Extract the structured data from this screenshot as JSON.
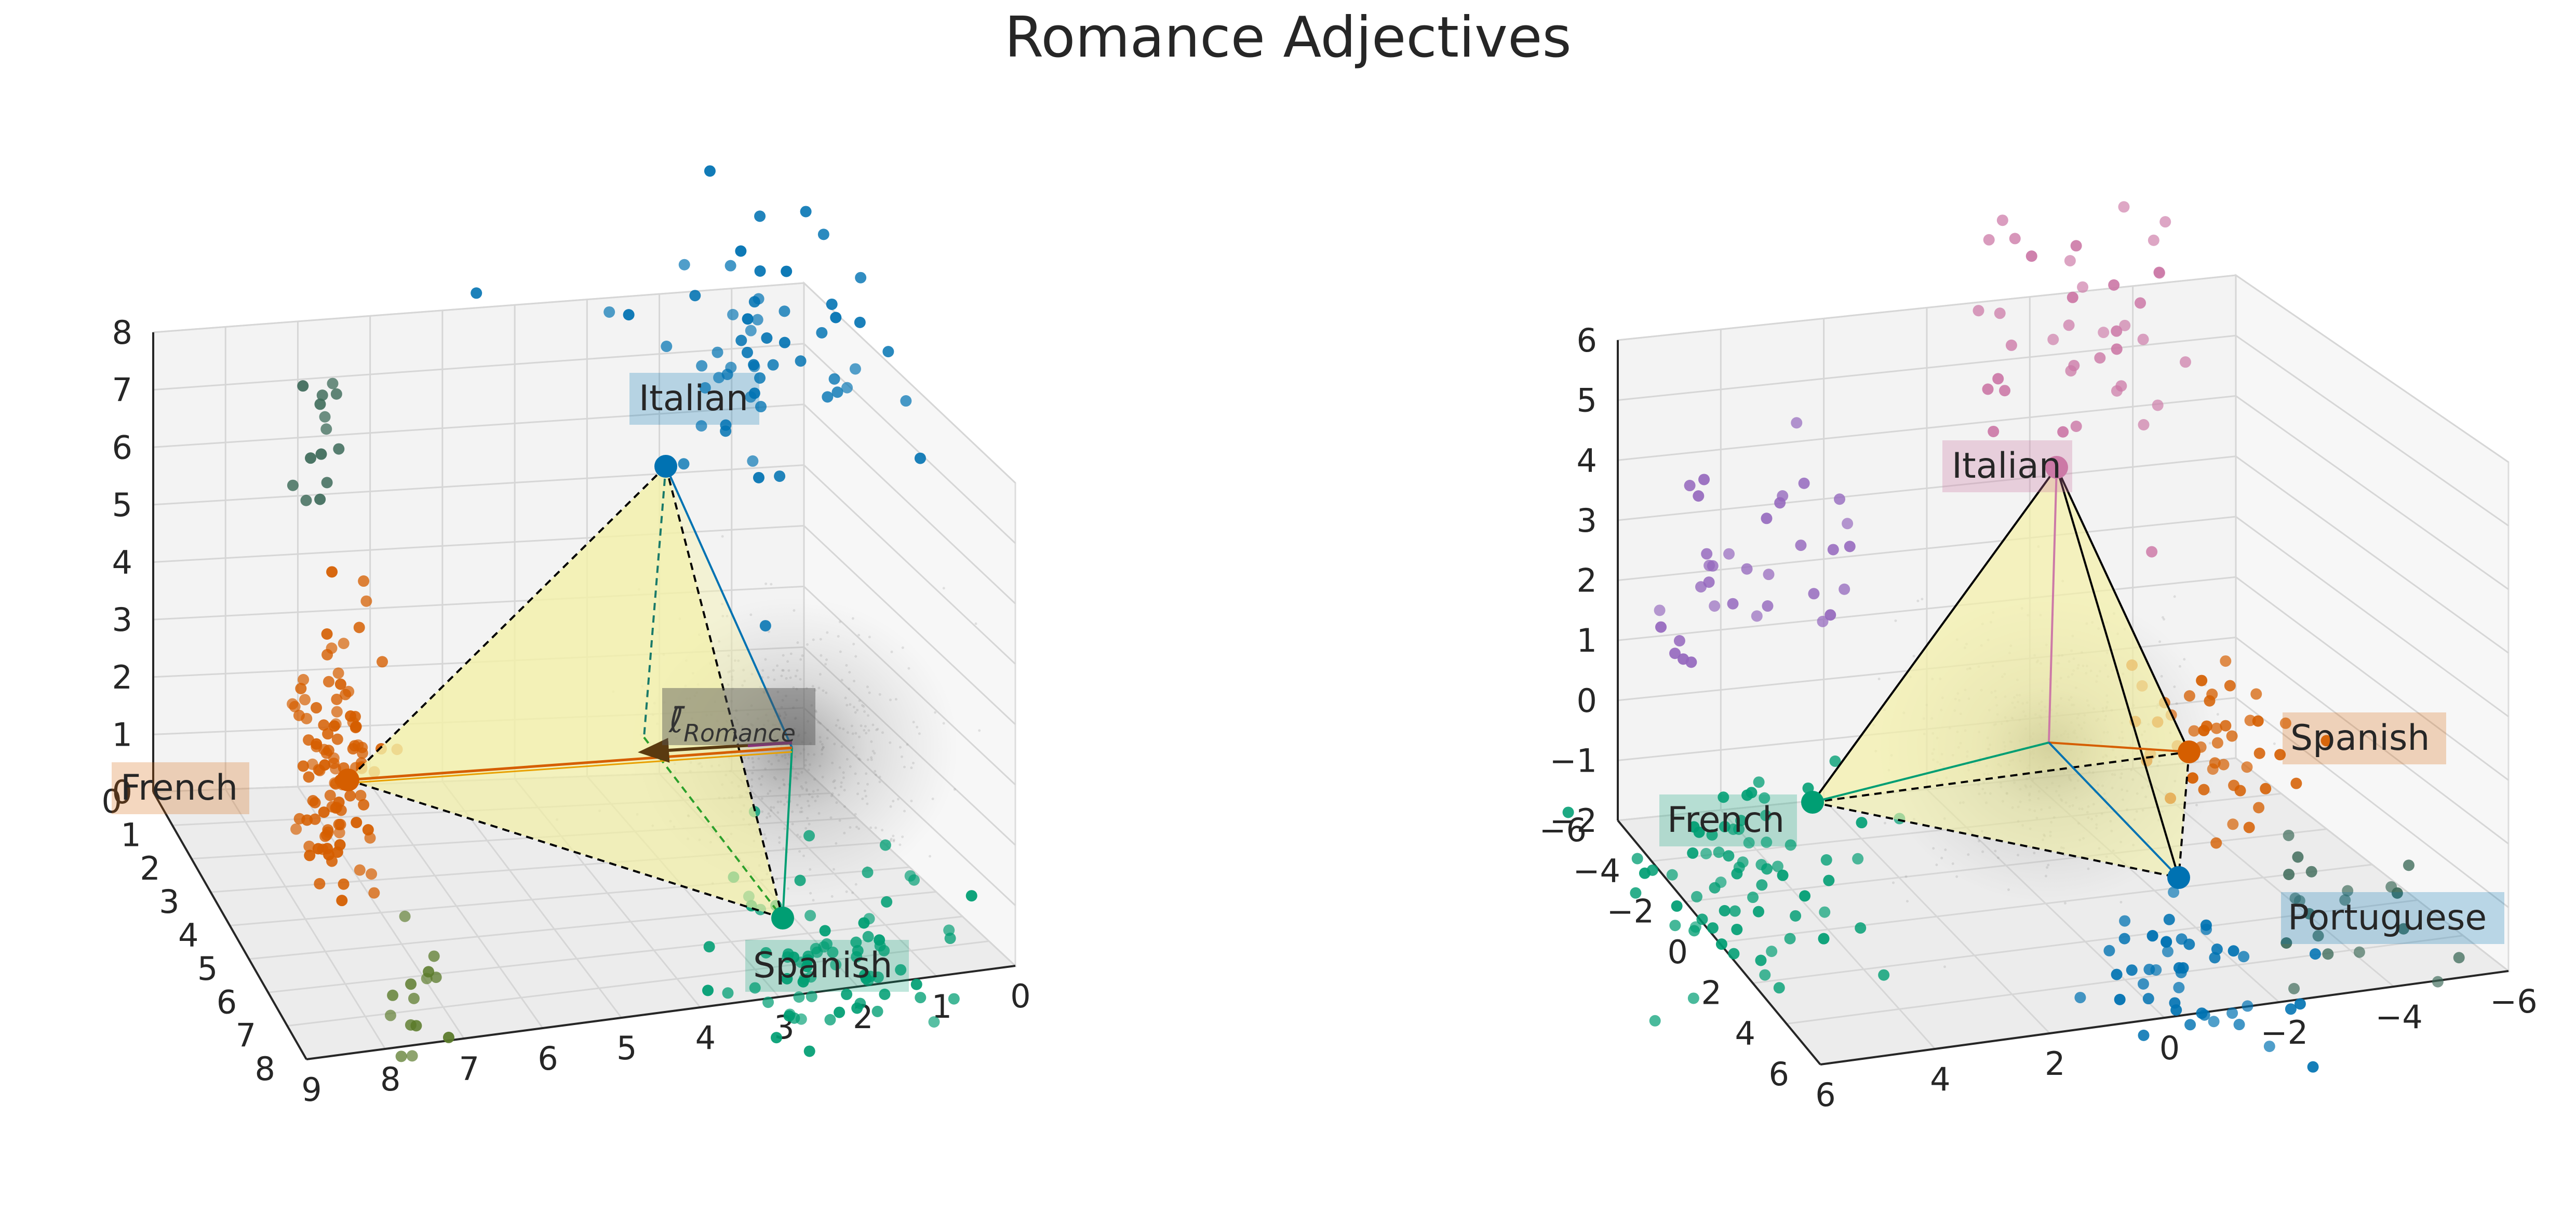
{
  "title": "Romance Adjectives",
  "colors": {
    "blue": "#0072b2",
    "orange": "#d55e00",
    "green": "#009e73",
    "pink": "#cc79a7",
    "purple": "#9467bd",
    "gray_green": "#3e6b5a",
    "olive": "#5a7a2a",
    "simplex_fill": "#f3f0a0",
    "cloud": "#777777"
  },
  "chart_data": [
    {
      "type": "scatter3d",
      "panel": "left",
      "axis_ticks": {
        "z": [
          "0",
          "1",
          "2",
          "3",
          "4",
          "5",
          "6",
          "7",
          "8"
        ],
        "y_left": [
          "0",
          "1",
          "2",
          "3",
          "4",
          "5",
          "6",
          "7",
          "8"
        ],
        "x_bottom": [
          "9",
          "8",
          "7",
          "6",
          "5",
          "4",
          "3",
          "2",
          "1",
          "0"
        ]
      },
      "zlim": [
        0,
        8
      ],
      "vertices": [
        {
          "name": "Italian",
          "color": "blue",
          "x": 0.5,
          "y": 1.5,
          "z": 6.0
        },
        {
          "name": "French",
          "color": "orange",
          "x": 8.0,
          "y": 1.0,
          "z": 1.0
        },
        {
          "name": "Spanish",
          "color": "green",
          "x": 3.0,
          "y": 6.0,
          "z": 1.0
        }
      ],
      "mean_label": "ℓ̄",
      "mean_subscript": "Romance",
      "clusters": [
        {
          "color": "blue",
          "count": 60
        },
        {
          "color": "orange",
          "count": 110
        },
        {
          "color": "green",
          "count": 75
        },
        {
          "color": "gray_green",
          "count": 14
        },
        {
          "color": "olive",
          "count": 14
        }
      ]
    },
    {
      "type": "scatter3d",
      "panel": "right",
      "axis_ticks": {
        "z": [
          "−2",
          "−1",
          "0",
          "1",
          "2",
          "3",
          "4",
          "5",
          "6"
        ],
        "y_left": [
          "−6",
          "−4",
          "−2",
          "0",
          "2",
          "4",
          "6"
        ],
        "x_bottom": [
          "6",
          "4",
          "2",
          "0",
          "−2",
          "−4",
          "−6"
        ]
      },
      "zlim": [
        -2,
        6
      ],
      "vertices": [
        {
          "name": "Italian",
          "color": "pink",
          "x": 0.0,
          "y": 0.0,
          "z": 4.0
        },
        {
          "name": "French",
          "color": "green",
          "x": 4.0,
          "y": -4.0,
          "z": -2.0
        },
        {
          "name": "Spanish",
          "color": "orange",
          "x": -4.0,
          "y": 2.0,
          "z": -1.5
        },
        {
          "name": "Portuguese",
          "color": "blue",
          "x": 0.0,
          "y": 3.0,
          "z": -2.5
        }
      ],
      "clusters": [
        {
          "color": "pink",
          "count": 40
        },
        {
          "color": "purple",
          "count": 35
        },
        {
          "color": "green",
          "count": 70
        },
        {
          "color": "orange",
          "count": 45
        },
        {
          "color": "blue",
          "count": 45
        },
        {
          "color": "gray_green",
          "count": 20
        }
      ]
    }
  ]
}
